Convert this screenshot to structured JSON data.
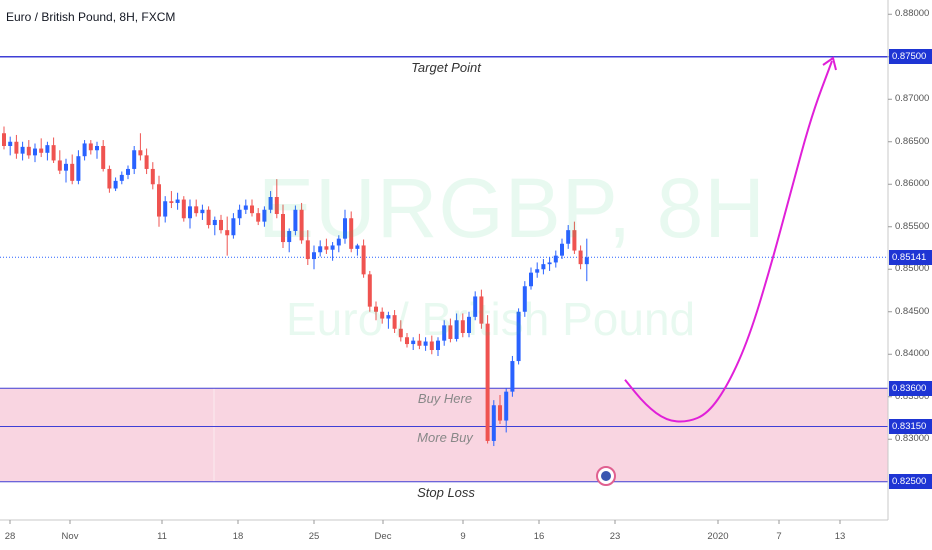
{
  "symbol_title": "Euro / British Pound, 8H, FXCM",
  "watermark": {
    "main": "EURGBP, 8H",
    "sub": "Euro / British Pound"
  },
  "colors": {
    "up": "#2962ff",
    "down": "#ef5350",
    "levels": "#3f3fd6",
    "zone": "#f8d0de",
    "projection": "#e020d8",
    "current_price": "#2962ff",
    "badge": "#1e35d4"
  },
  "levels": [
    {
      "name": "target",
      "price": 0.875,
      "label": "Target Point",
      "badge": "0.87500"
    },
    {
      "name": "buy",
      "price": 0.836,
      "label": "Buy Here",
      "badge": "0.83600"
    },
    {
      "name": "more-buy",
      "price": 0.8315,
      "label": "More Buy",
      "badge": "0.83150"
    },
    {
      "name": "stop",
      "price": 0.825,
      "label": "Stop Loss",
      "badge": "0.82500"
    }
  ],
  "current_price": {
    "price": 0.85141,
    "badge": "0.85141"
  },
  "y_axis_ticks": [
    "0.88000",
    "0.87500",
    "0.87000",
    "0.86500",
    "0.86000",
    "0.85500",
    "0.85000",
    "0.84500",
    "0.84000",
    "0.83500",
    "0.83000"
  ],
  "x_axis_ticks": [
    "28",
    "Nov",
    "11",
    "18",
    "25",
    "Dec",
    "9",
    "16",
    "23",
    "2020",
    "7",
    "13"
  ],
  "chart_data": {
    "type": "candlestick",
    "title": "Euro / British Pound, 8H, FXCM",
    "ylim": [
      0.8205,
      0.8805
    ],
    "x_labels": [
      "28",
      "Nov",
      "11",
      "18",
      "25",
      "Dec",
      "9",
      "16",
      "23",
      "2020",
      "7",
      "13"
    ],
    "candles_ohlc": [
      [
        0.866,
        0.8668,
        0.8641,
        0.8645
      ],
      [
        0.8645,
        0.8656,
        0.8634,
        0.865
      ],
      [
        0.865,
        0.8658,
        0.863,
        0.8636
      ],
      [
        0.8636,
        0.865,
        0.8628,
        0.8644
      ],
      [
        0.8644,
        0.8652,
        0.863,
        0.8634
      ],
      [
        0.8634,
        0.8648,
        0.8626,
        0.8642
      ],
      [
        0.8642,
        0.8654,
        0.8632,
        0.8637
      ],
      [
        0.8637,
        0.865,
        0.8628,
        0.8646
      ],
      [
        0.8646,
        0.8655,
        0.8625,
        0.8628
      ],
      [
        0.8628,
        0.864,
        0.8612,
        0.8616
      ],
      [
        0.8616,
        0.863,
        0.8602,
        0.8624
      ],
      [
        0.8624,
        0.8635,
        0.86,
        0.8604
      ],
      [
        0.8604,
        0.864,
        0.86,
        0.8633
      ],
      [
        0.8633,
        0.8652,
        0.8628,
        0.8648
      ],
      [
        0.8648,
        0.8652,
        0.8635,
        0.864
      ],
      [
        0.864,
        0.865,
        0.863,
        0.8645
      ],
      [
        0.8645,
        0.8652,
        0.8615,
        0.8618
      ],
      [
        0.8618,
        0.8622,
        0.859,
        0.8595
      ],
      [
        0.8595,
        0.8608,
        0.8592,
        0.8604
      ],
      [
        0.8604,
        0.8615,
        0.86,
        0.8611
      ],
      [
        0.8611,
        0.8622,
        0.8606,
        0.8618
      ],
      [
        0.8618,
        0.8645,
        0.8612,
        0.864
      ],
      [
        0.864,
        0.866,
        0.8628,
        0.8634
      ],
      [
        0.8634,
        0.8642,
        0.8612,
        0.8618
      ],
      [
        0.8618,
        0.8626,
        0.8594,
        0.86
      ],
      [
        0.86,
        0.861,
        0.855,
        0.8562
      ],
      [
        0.8562,
        0.8586,
        0.8555,
        0.858
      ],
      [
        0.858,
        0.8592,
        0.8572,
        0.8578
      ],
      [
        0.8578,
        0.859,
        0.857,
        0.8582
      ],
      [
        0.8582,
        0.8586,
        0.8556,
        0.856
      ],
      [
        0.856,
        0.8582,
        0.8548,
        0.8574
      ],
      [
        0.8574,
        0.8582,
        0.8562,
        0.8566
      ],
      [
        0.8566,
        0.8576,
        0.8558,
        0.857
      ],
      [
        0.857,
        0.8574,
        0.8548,
        0.8552
      ],
      [
        0.8552,
        0.8562,
        0.854,
        0.8558
      ],
      [
        0.8558,
        0.8564,
        0.8542,
        0.8546
      ],
      [
        0.8546,
        0.8562,
        0.8516,
        0.854
      ],
      [
        0.854,
        0.8566,
        0.8536,
        0.856
      ],
      [
        0.856,
        0.8576,
        0.8552,
        0.857
      ],
      [
        0.857,
        0.8582,
        0.8565,
        0.8575
      ],
      [
        0.8575,
        0.8582,
        0.8562,
        0.8566
      ],
      [
        0.8566,
        0.8572,
        0.8552,
        0.8556
      ],
      [
        0.8556,
        0.8574,
        0.855,
        0.857
      ],
      [
        0.857,
        0.8592,
        0.8566,
        0.8585
      ],
      [
        0.8585,
        0.8606,
        0.856,
        0.8565
      ],
      [
        0.8565,
        0.8576,
        0.8525,
        0.8532
      ],
      [
        0.8532,
        0.8548,
        0.852,
        0.8545
      ],
      [
        0.8545,
        0.8575,
        0.854,
        0.857
      ],
      [
        0.857,
        0.8578,
        0.853,
        0.8534
      ],
      [
        0.8534,
        0.8546,
        0.8505,
        0.8512
      ],
      [
        0.8512,
        0.8528,
        0.85,
        0.852
      ],
      [
        0.852,
        0.8534,
        0.8515,
        0.8527
      ],
      [
        0.8527,
        0.8536,
        0.8518,
        0.8523
      ],
      [
        0.8523,
        0.8532,
        0.851,
        0.8528
      ],
      [
        0.8528,
        0.854,
        0.852,
        0.8536
      ],
      [
        0.8536,
        0.857,
        0.853,
        0.856
      ],
      [
        0.856,
        0.8568,
        0.852,
        0.8524
      ],
      [
        0.8524,
        0.853,
        0.8516,
        0.8528
      ],
      [
        0.8528,
        0.8535,
        0.849,
        0.8494
      ],
      [
        0.8494,
        0.8498,
        0.845,
        0.8456
      ],
      [
        0.8456,
        0.8462,
        0.844,
        0.845
      ],
      [
        0.845,
        0.8455,
        0.8436,
        0.8442
      ],
      [
        0.8442,
        0.845,
        0.843,
        0.8446
      ],
      [
        0.8446,
        0.8452,
        0.8425,
        0.843
      ],
      [
        0.843,
        0.844,
        0.8415,
        0.842
      ],
      [
        0.842,
        0.8425,
        0.8408,
        0.8412
      ],
      [
        0.8412,
        0.842,
        0.8405,
        0.8416
      ],
      [
        0.8416,
        0.8424,
        0.8406,
        0.841
      ],
      [
        0.841,
        0.842,
        0.8404,
        0.8415
      ],
      [
        0.8415,
        0.8422,
        0.84,
        0.8405
      ],
      [
        0.8405,
        0.842,
        0.8398,
        0.8416
      ],
      [
        0.8416,
        0.844,
        0.841,
        0.8434
      ],
      [
        0.8434,
        0.8442,
        0.8414,
        0.8418
      ],
      [
        0.8418,
        0.8448,
        0.8415,
        0.844
      ],
      [
        0.844,
        0.8448,
        0.842,
        0.8425
      ],
      [
        0.8425,
        0.845,
        0.842,
        0.8444
      ],
      [
        0.8444,
        0.8474,
        0.844,
        0.8468
      ],
      [
        0.8468,
        0.8476,
        0.843,
        0.8436
      ],
      [
        0.8436,
        0.8446,
        0.8295,
        0.8298
      ],
      [
        0.8298,
        0.8346,
        0.8292,
        0.834
      ],
      [
        0.834,
        0.8352,
        0.8318,
        0.8322
      ],
      [
        0.8322,
        0.836,
        0.8308,
        0.8356
      ],
      [
        0.8356,
        0.8398,
        0.835,
        0.8392
      ],
      [
        0.8392,
        0.8454,
        0.8388,
        0.845
      ],
      [
        0.845,
        0.8486,
        0.8444,
        0.848
      ],
      [
        0.848,
        0.8502,
        0.8476,
        0.8496
      ],
      [
        0.8496,
        0.8508,
        0.849,
        0.85
      ],
      [
        0.85,
        0.8512,
        0.8494,
        0.8506
      ],
      [
        0.8506,
        0.8514,
        0.8498,
        0.8508
      ],
      [
        0.8508,
        0.8522,
        0.8502,
        0.8516
      ],
      [
        0.8516,
        0.8536,
        0.8512,
        0.853
      ],
      [
        0.853,
        0.8552,
        0.8524,
        0.8546
      ],
      [
        0.8546,
        0.8556,
        0.8518,
        0.8522
      ],
      [
        0.8522,
        0.8528,
        0.85,
        0.8506
      ],
      [
        0.8506,
        0.8536,
        0.8486,
        0.8514
      ]
    ],
    "projection_path_prices": [
      0.837,
      0.834,
      0.8322,
      0.832,
      0.833,
      0.8365,
      0.842,
      0.85,
      0.859,
      0.868,
      0.8745
    ]
  }
}
